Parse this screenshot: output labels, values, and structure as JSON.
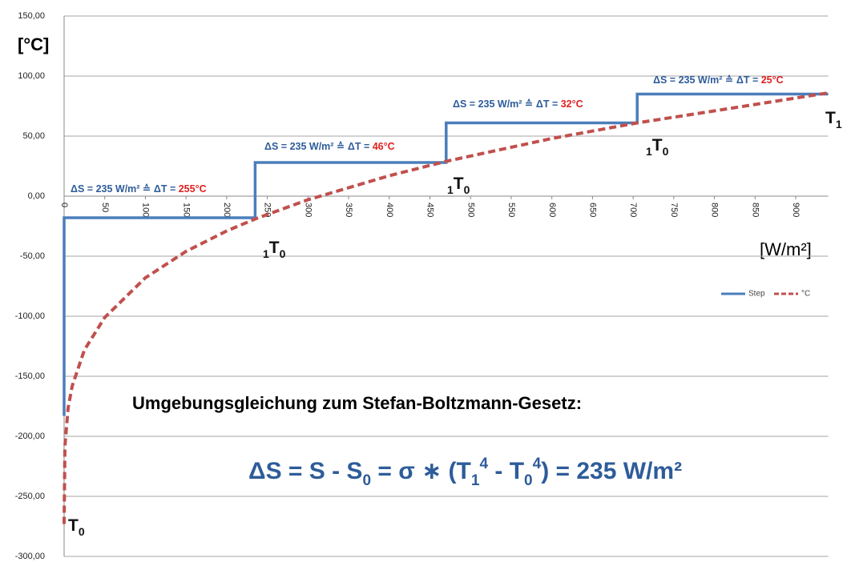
{
  "chart_data": {
    "type": "line",
    "y_label": "[°C]",
    "x_label": "[W/m²]",
    "xlim": [
      0,
      940
    ],
    "xticks": [
      0,
      50,
      100,
      150,
      200,
      250,
      300,
      350,
      400,
      450,
      500,
      550,
      600,
      650,
      700,
      750,
      800,
      850,
      900
    ],
    "ylim": [
      -300,
      150
    ],
    "yticks": [
      {
        "value": -300,
        "label": "-300,00"
      },
      {
        "value": -250,
        "label": "-250,00"
      },
      {
        "value": -200,
        "label": "-200,00"
      },
      {
        "value": -150,
        "label": "-150,00"
      },
      {
        "value": -100,
        "label": "-100,00"
      },
      {
        "value": -50,
        "label": "-50,00"
      },
      {
        "value": 0,
        "label": "0,00"
      },
      {
        "value": 50,
        "label": "50,00"
      },
      {
        "value": 100,
        "label": "100,00"
      },
      {
        "value": 150,
        "label": "150,00"
      }
    ],
    "grid": true,
    "legend": "right",
    "series": [
      {
        "name": "Step",
        "color": "#4a7ebb",
        "dashed": false,
        "x": [
          0,
          0,
          235,
          235,
          470,
          470,
          705,
          705,
          940
        ],
        "values": [
          -183,
          -18,
          -18,
          28,
          28,
          61,
          61,
          85,
          85
        ]
      },
      {
        "name": "°C",
        "color": "#c0504d",
        "dashed": true,
        "x": [
          0,
          1,
          5,
          10,
          25,
          50,
          100,
          150,
          200,
          235,
          300,
          400,
          470,
          600,
          705,
          800,
          940
        ],
        "values": [
          -273,
          -208,
          -176,
          -158,
          -128,
          -101,
          -68,
          -46,
          -29,
          -19,
          -3,
          17,
          29,
          48,
          61,
          71,
          86
        ]
      }
    ],
    "annotations": [
      {
        "text": "ΔS = 235 W/m² ≙ ΔT = ",
        "highlight": "255°C"
      },
      {
        "text": "ΔS = 235 W/m² ≙ ΔT = ",
        "highlight": "46°C"
      },
      {
        "text": "ΔS = 235 W/m² ≙ ΔT = ",
        "highlight": "32°C"
      },
      {
        "text": "ΔS = 235 W/m² ≙ ΔT = ",
        "highlight": "25°C"
      }
    ],
    "point_labels": [
      {
        "text": "T",
        "sub": "0"
      },
      {
        "pre": "1",
        "text": "T",
        "sub": "0"
      },
      {
        "pre": "1",
        "text": "T",
        "sub": "0"
      },
      {
        "pre": "1",
        "text": "T",
        "sub": "0"
      },
      {
        "text": "T",
        "sub": "1"
      }
    ],
    "caption": "Umgebungsgleichung zum Stefan-Boltzmann-Gesetz:",
    "formula": [
      {
        "text": "ΔS = S - S"
      },
      {
        "text": "0",
        "shift": "sub"
      },
      {
        "text": " = σ ∗ (T"
      },
      {
        "text": "1",
        "shift": "sub"
      },
      {
        "text": "4",
        "shift": "super"
      },
      {
        "text": " - T"
      },
      {
        "text": "0",
        "shift": "sub"
      },
      {
        "text": "4",
        "shift": "super"
      },
      {
        "text": ") = 235 W/m²"
      }
    ]
  }
}
